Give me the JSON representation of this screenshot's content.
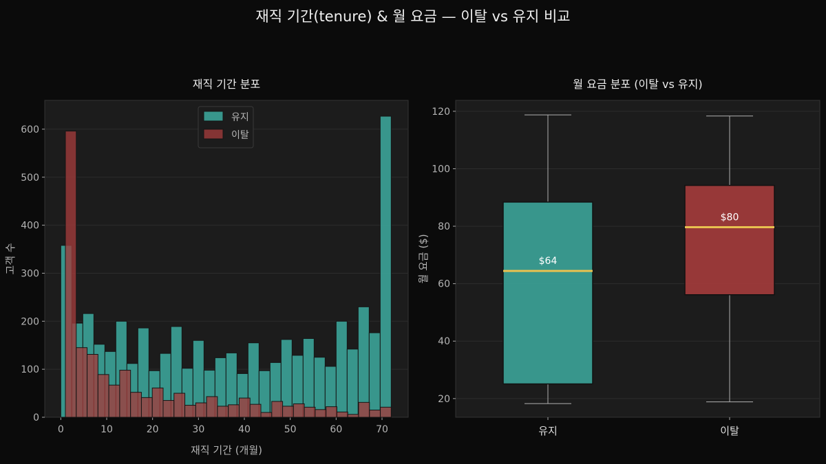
{
  "title": "재직 기간(tenure) & 월 요금 — 이탈 vs 유지 비교",
  "colors": {
    "retain": "#3ba196",
    "churn": "#a23b3b",
    "median": "#e8c150",
    "background": "#0b0b0b",
    "axes": "#1c1c1c"
  },
  "chart_data": [
    {
      "type": "bar",
      "subtype": "histogram-overlay",
      "title": "재직 기간 분포",
      "xlabel": "재직 기간 (개월)",
      "ylabel": "고객 수",
      "xlim": [
        -3.5,
        75.7
      ],
      "ylim": [
        0,
        660
      ],
      "xticks": [
        0,
        10,
        20,
        30,
        40,
        50,
        60,
        70
      ],
      "yticks": [
        0,
        100,
        200,
        300,
        400,
        500,
        600
      ],
      "grid": true,
      "legend": "top-center",
      "series": [
        {
          "name": "유지",
          "bin_start": 0,
          "bin_end": 72,
          "values": [
            358,
            196,
            216,
            152,
            137,
            200,
            112,
            186,
            97,
            133,
            189,
            102,
            160,
            98,
            124,
            134,
            91,
            155,
            97,
            114,
            162,
            129,
            164,
            125,
            106,
            200,
            142,
            230,
            176,
            627
          ]
        },
        {
          "name": "이탈",
          "bin_start": 1,
          "bin_end": 72,
          "values": [
            596,
            145,
            131,
            89,
            67,
            98,
            52,
            41,
            61,
            35,
            50,
            25,
            30,
            43,
            23,
            26,
            40,
            27,
            10,
            33,
            23,
            28,
            21,
            16,
            22,
            11,
            6,
            31,
            15,
            21
          ]
        }
      ]
    },
    {
      "type": "box",
      "title": "월 요금 분포 (이탈 vs 유지)",
      "xlabel": "",
      "ylabel": "월 요금 ($)",
      "ylim": [
        13.5,
        123.8
      ],
      "yticks": [
        20,
        40,
        60,
        80,
        100,
        120
      ],
      "grid": true,
      "categories": [
        "유지",
        "이탈"
      ],
      "boxes": [
        {
          "name": "유지",
          "min": 18.25,
          "q1": 25.1,
          "median": 64.43,
          "q3": 88.4,
          "max": 118.75,
          "median_label": "$64"
        },
        {
          "name": "이탈",
          "min": 18.85,
          "q1": 56.15,
          "median": 79.65,
          "q3": 94.2,
          "max": 118.35,
          "median_label": "$80"
        }
      ]
    }
  ]
}
